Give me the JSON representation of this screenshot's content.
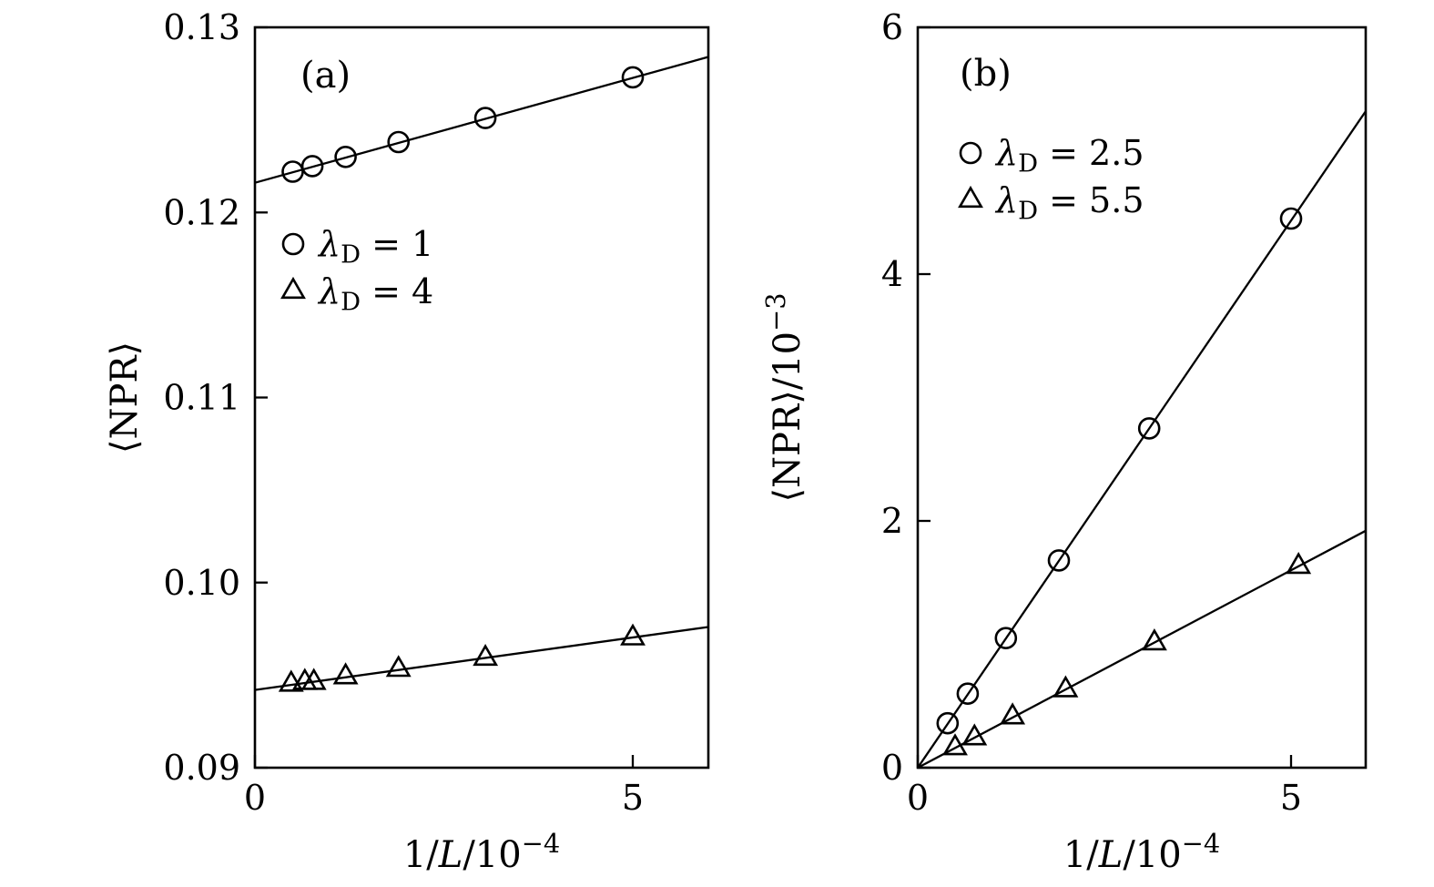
{
  "figure": {
    "background": "#ffffff",
    "ink": "#000000"
  },
  "chart_data": [
    {
      "type": "scatter",
      "panel_label": "(a)",
      "xlabel_parts": [
        {
          "t": "1/"
        },
        {
          "t": "L",
          "i": true
        },
        {
          "t": "/10"
        },
        {
          "t": "−4",
          "sup": true
        }
      ],
      "ylabel_parts": [
        {
          "t": "⟨NPR⟩"
        }
      ],
      "xlim": [
        0,
        6
      ],
      "ylim": [
        0.09,
        0.13
      ],
      "xticks": [
        {
          "v": 0,
          "label": "0"
        },
        {
          "v": 5,
          "label": "5"
        }
      ],
      "yticks": [
        {
          "v": 0.09,
          "label": "0.09"
        },
        {
          "v": 0.1,
          "label": "0.10"
        },
        {
          "v": 0.11,
          "label": "0.11"
        },
        {
          "v": 0.12,
          "label": "0.12"
        },
        {
          "v": 0.13,
          "label": "0.13"
        }
      ],
      "grid": false,
      "legend_position": "center-left",
      "series": [
        {
          "marker": "circle",
          "label_parts": [
            {
              "t": "λ",
              "i": true
            },
            {
              "t": "D",
              "sub": true
            },
            {
              "t": " = 1"
            }
          ],
          "x": [
            0.5,
            0.76,
            1.2,
            1.9,
            3.05,
            5.0
          ],
          "y": [
            0.1222,
            0.1225,
            0.123,
            0.1238,
            0.1251,
            0.1273
          ],
          "fit_line": {
            "x": [
              0,
              6
            ],
            "y": [
              0.1216,
              0.1284
            ]
          }
        },
        {
          "marker": "triangle",
          "label_parts": [
            {
              "t": "λ",
              "i": true
            },
            {
              "t": "D",
              "sub": true
            },
            {
              "t": " = 4"
            }
          ],
          "x": [
            0.48,
            0.66,
            0.78,
            1.2,
            1.9,
            3.05,
            5.0
          ],
          "y": [
            0.0945,
            0.0946,
            0.0946,
            0.0949,
            0.0953,
            0.0959,
            0.097
          ],
          "fit_line": {
            "x": [
              0,
              6
            ],
            "y": [
              0.0942,
              0.0976
            ]
          }
        }
      ]
    },
    {
      "type": "scatter",
      "panel_label": "(b)",
      "xlabel_parts": [
        {
          "t": "1/"
        },
        {
          "t": "L",
          "i": true
        },
        {
          "t": "/10"
        },
        {
          "t": "−4",
          "sup": true
        }
      ],
      "ylabel_parts": [
        {
          "t": "⟨NPR⟩/10"
        },
        {
          "t": "−3",
          "sup": true
        }
      ],
      "xlim": [
        0,
        6
      ],
      "ylim": [
        0,
        6
      ],
      "xticks": [
        {
          "v": 0,
          "label": "0"
        },
        {
          "v": 5,
          "label": "5"
        }
      ],
      "yticks": [
        {
          "v": 0,
          "label": "0"
        },
        {
          "v": 2,
          "label": "2"
        },
        {
          "v": 4,
          "label": "4"
        },
        {
          "v": 6,
          "label": "6"
        }
      ],
      "grid": false,
      "legend_position": "upper-left",
      "series": [
        {
          "marker": "circle",
          "label_parts": [
            {
              "t": "λ",
              "i": true
            },
            {
              "t": "D",
              "sub": true
            },
            {
              "t": " = 2.5"
            }
          ],
          "x": [
            0.4,
            0.67,
            1.18,
            1.89,
            3.1,
            5.0
          ],
          "y": [
            0.36,
            0.6,
            1.05,
            1.68,
            2.75,
            4.45
          ],
          "fit_line": {
            "x": [
              0,
              6
            ],
            "y": [
              0,
              5.32
            ]
          }
        },
        {
          "marker": "triangle",
          "label_parts": [
            {
              "t": "λ",
              "i": true
            },
            {
              "t": "D",
              "sub": true
            },
            {
              "t": " = 5.5"
            }
          ],
          "x": [
            0.5,
            0.76,
            1.27,
            1.98,
            3.17,
            5.1
          ],
          "y": [
            0.16,
            0.24,
            0.41,
            0.63,
            1.01,
            1.63
          ],
          "fit_line": {
            "x": [
              0,
              6
            ],
            "y": [
              0,
              1.92
            ]
          }
        }
      ]
    }
  ]
}
